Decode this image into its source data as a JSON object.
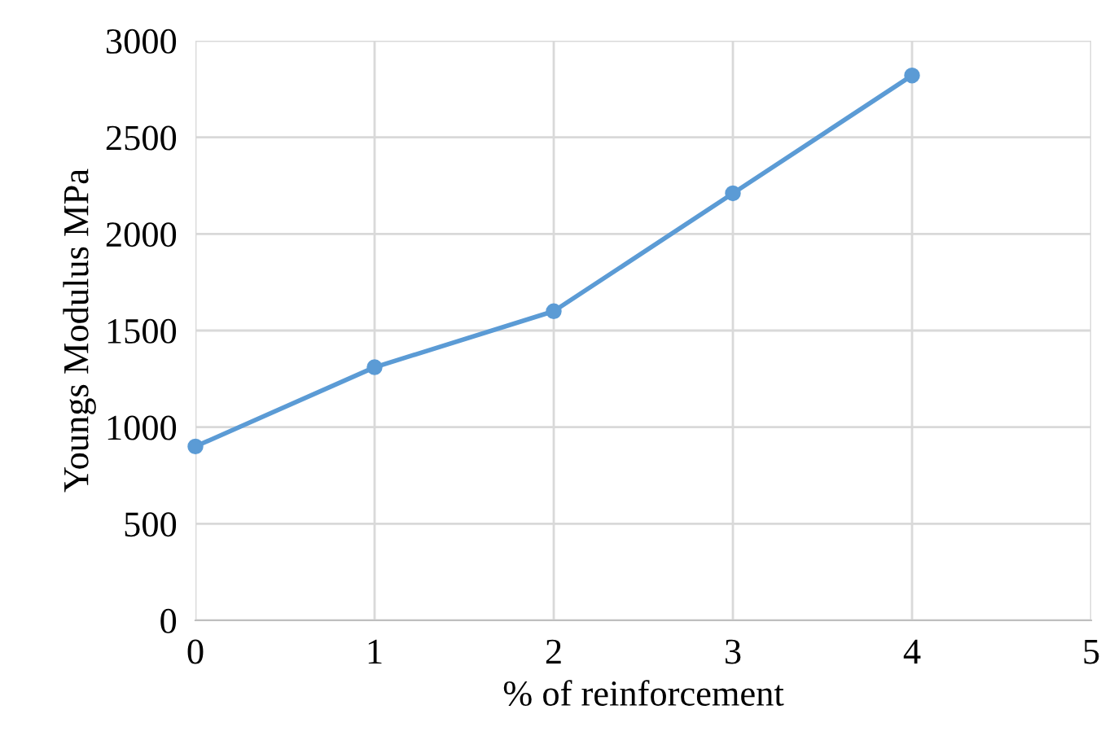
{
  "chart_data": {
    "type": "line",
    "xlabel": "% of reinforcement",
    "ylabel": "Youngs Modulus MPa",
    "x": [
      0,
      1,
      2,
      3,
      4
    ],
    "series": [
      {
        "color": "#5b9bd5",
        "values": [
          900,
          1310,
          1600,
          2210,
          2820
        ]
      }
    ],
    "xlim": [
      0,
      5
    ],
    "xticks": [
      0,
      1,
      2,
      3,
      4,
      5
    ],
    "ylim": [
      0,
      3000
    ],
    "yticks": [
      0,
      500,
      1000,
      1500,
      2000,
      2500,
      3000
    ],
    "grid": true,
    "marker": "circle",
    "line_style": "solid"
  }
}
